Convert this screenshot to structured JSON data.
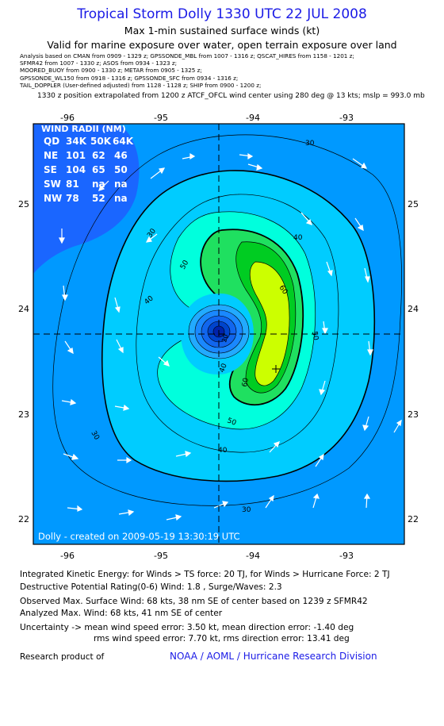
{
  "header": {
    "title": "Tropical Storm Dolly 1330 UTC 22 JUL 2008",
    "subtitle": "Max 1-min sustained surface winds (kt)",
    "valid": "Valid for marine exposure over water, open terrain exposure over land"
  },
  "analysis_lines": [
    "Analysis based on  CMAN from 0909 - 1329 z;  GPSSONDE_MBL from 1007 - 1316 z;  QSCAT_HIRES from 1158 - 1201 z;",
    "SFMR42 from 1007 - 1330 z;  ASOS from 0934 - 1323 z;",
    "MOORED_BUOY from 0900 - 1330 z;  METAR from 0905 - 1325 z;",
    "GPSSONDE_WL150 from 0918 - 1316 z;  GPSSONDE_SFC from 0934 - 1316 z;",
    "TAIL_DOPPLER (User-defined adjusted) from 1128 - 1128 z;  SHIP from 0900 - 1200 z;"
  ],
  "position_note": "1330 z position extrapolated from 1200 z ATCF_OFCL wind center using 280 deg @ 13 kts;  mslp = 993.0 mb",
  "map": {
    "lon_labels": [
      "-96",
      "-95",
      "-94",
      "-93"
    ],
    "lat_labels": [
      "25",
      "24",
      "23",
      "22"
    ],
    "contour_labels": [
      "30",
      "30",
      "30",
      "30",
      "40",
      "40",
      "40",
      "40",
      "50",
      "50",
      "50",
      "60",
      "60",
      "20"
    ],
    "credit": "Dolly - created on 2009-05-19 13:30:19 UTC",
    "colors": {
      "c20": "#1a66ff",
      "c30": "#0099ff",
      "c40": "#00ccff",
      "c50": "#00ffdd",
      "c60": "#1fe060",
      "c70": "#00cc22",
      "c80": "#ccff00",
      "center": "#0022aa"
    }
  },
  "wind_radii": {
    "title": "WIND RADII (NM)",
    "header": [
      "QD",
      "34K",
      "50K",
      "64K"
    ],
    "rows": [
      [
        "NE",
        "101",
        "62",
        "46"
      ],
      [
        "SE",
        "104",
        "65",
        "50"
      ],
      [
        "SW",
        "81",
        "na",
        "na"
      ],
      [
        "NW",
        "78",
        "52",
        "na"
      ]
    ]
  },
  "footer": {
    "ike": "Integrated Kinetic Energy:  for Winds > TS force: 20 TJ,  for Winds > Hurricane Force: 2 TJ",
    "dpr": "Destructive Potential Rating(0-6)   Wind: 1.8 , Surge/Waves: 2.3",
    "observed": "Observed Max. Surface Wind: 68 kts, 38 nm SE of center based on 1239 z SFMR42",
    "analyzed": "Analyzed Max. Wind: 68 kts, 41 nm SE of center",
    "uncertainty1": "Uncertainty -> mean wind speed error: 3.50 kt,   mean direction error:  -1.40 deg",
    "uncertainty2": "rms wind speed error: 7.70 kt,   rms direction error: 13.41 deg",
    "research_label": "Research product of",
    "noaa": "NOAA / AOML / Hurricane Research Division"
  }
}
